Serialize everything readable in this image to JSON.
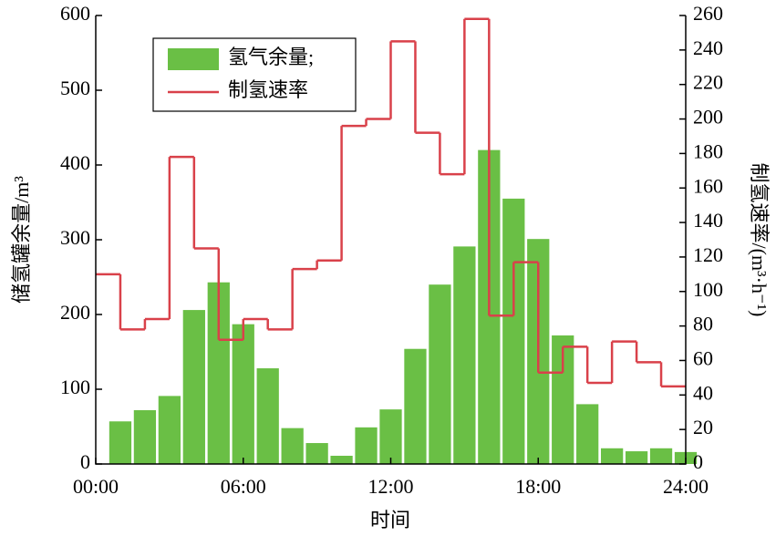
{
  "chart_data": {
    "type": "bar_step",
    "xlabel": "时间",
    "ylabel": "储氢罐余量/m³",
    "y2label": "制氢速率/(m³·h⁻¹)",
    "xlim": [
      0,
      24
    ],
    "xticks": [
      {
        "value": 0,
        "label": "00:00"
      },
      {
        "value": 6,
        "label": "06:00"
      },
      {
        "value": 12,
        "label": "12:00"
      },
      {
        "value": 18,
        "label": "18:00"
      },
      {
        "value": 24,
        "label": "24:00"
      }
    ],
    "ylim": [
      0,
      600
    ],
    "yticks": [
      0,
      100,
      200,
      300,
      400,
      500,
      600
    ],
    "y2lim": [
      0,
      260
    ],
    "y2ticks": [
      0,
      20,
      40,
      60,
      80,
      100,
      120,
      140,
      160,
      180,
      200,
      220,
      240,
      260
    ],
    "legend": "upper left",
    "series": [
      {
        "name": "氢气余量;",
        "type": "bar",
        "color": "#6abf45",
        "x": [
          1,
          2,
          3,
          4,
          5,
          6,
          7,
          8,
          9,
          10,
          11,
          12,
          13,
          14,
          15,
          16,
          17,
          18,
          19,
          20,
          21,
          22,
          23,
          24
        ],
        "values": [
          57,
          72,
          91,
          206,
          243,
          187,
          128,
          48,
          28,
          11,
          49,
          73,
          154,
          240,
          291,
          420,
          355,
          301,
          172,
          80,
          21,
          17,
          21,
          16
        ]
      },
      {
        "name": "制氢速率",
        "type": "step",
        "axis": "y2",
        "color": "#d9414a",
        "x": [
          0,
          1,
          2,
          3,
          4,
          5,
          6,
          7,
          8,
          9,
          10,
          11,
          12,
          13,
          14,
          15,
          16,
          17,
          18,
          19,
          20,
          21,
          22,
          23
        ],
        "values": [
          110,
          78,
          84,
          178,
          125,
          72,
          84,
          78,
          113,
          118,
          196,
          200,
          245,
          192,
          168,
          258,
          86,
          117,
          53,
          68,
          47,
          71,
          59,
          45
        ]
      }
    ]
  }
}
